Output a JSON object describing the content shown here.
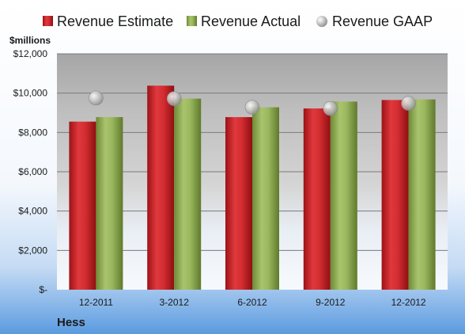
{
  "chart_data": {
    "type": "bar",
    "categories": [
      "12-2011",
      "3-2012",
      "6-2012",
      "9-2012",
      "12-2012"
    ],
    "series": [
      {
        "name": "Revenue Estimate",
        "kind": "bar",
        "color": "#c8262a",
        "values": [
          8550,
          10380,
          8780,
          9220,
          9650
        ]
      },
      {
        "name": "Revenue Actual",
        "kind": "bar",
        "color": "#8fa856",
        "values": [
          8780,
          9720,
          9280,
          9570,
          9680
        ]
      },
      {
        "name": "Revenue GAAP",
        "kind": "point",
        "color": "#b8b8b8",
        "values": [
          9750,
          9720,
          9280,
          9220,
          9480
        ]
      }
    ],
    "ylabel": "$millions",
    "ylim": [
      0,
      12000
    ],
    "yticks": [
      0,
      2000,
      4000,
      6000,
      8000,
      10000,
      12000
    ],
    "ytick_labels": [
      "$-",
      "$2,000",
      "$4,000",
      "$6,000",
      "$8,000",
      "$10,000",
      "$12,000"
    ],
    "grid": true,
    "legend_position": "top",
    "company": "Hess"
  },
  "colors": {
    "background_top": "#ffffff",
    "background_bottom": "#5b9be0",
    "plot_top": "#a9a9a9",
    "estimate": "#c8262a",
    "actual": "#8fa856",
    "gaap": "#b8b8b8"
  }
}
